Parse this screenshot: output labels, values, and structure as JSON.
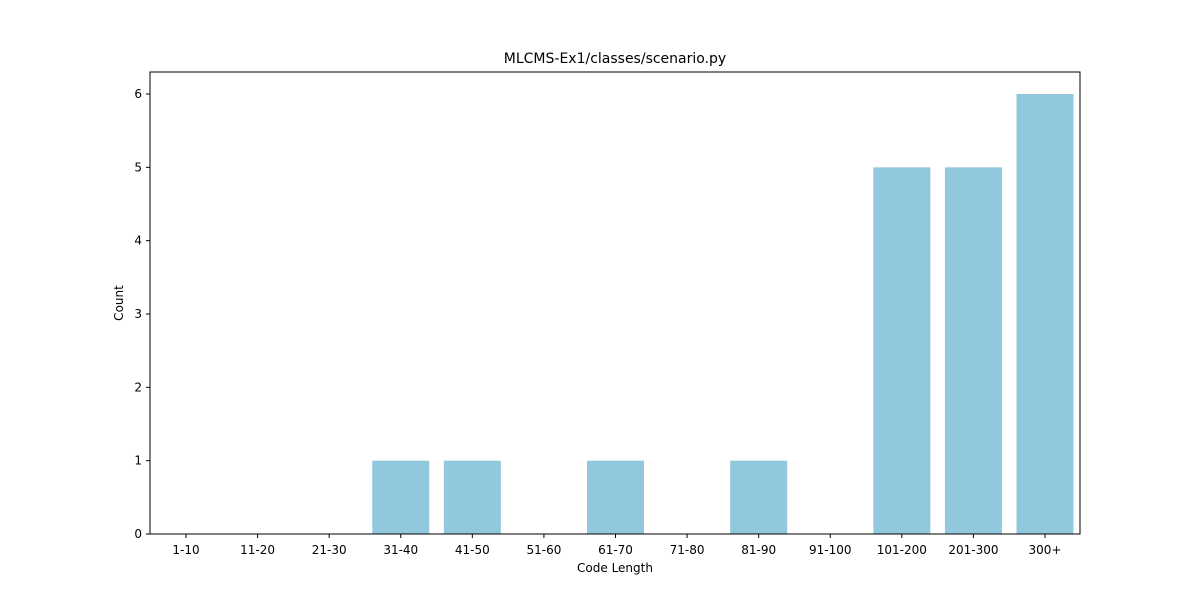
{
  "chart_data": {
    "type": "bar",
    "title": "MLCMS-Ex1/classes/scenario.py",
    "xlabel": "Code Length",
    "ylabel": "Count",
    "categories": [
      "1-10",
      "11-20",
      "21-30",
      "31-40",
      "41-50",
      "51-60",
      "61-70",
      "71-80",
      "81-90",
      "91-100",
      "101-200",
      "201-300",
      "300+"
    ],
    "values": [
      0,
      0,
      0,
      1,
      1,
      0,
      1,
      0,
      1,
      0,
      5,
      5,
      6
    ],
    "ylim": [
      0,
      6.3
    ],
    "yticks": [
      0,
      1,
      2,
      3,
      4,
      5,
      6
    ],
    "bar_color": "#92c8dd",
    "grid": false,
    "legend": "none"
  }
}
